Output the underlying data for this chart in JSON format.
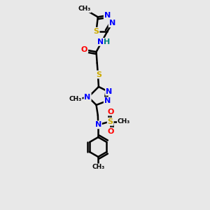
{
  "background_color": "#e8e8e8",
  "atom_colors": {
    "C": "#000000",
    "N": "#0000ff",
    "O": "#ff0000",
    "S": "#ccaa00",
    "H": "#008080"
  },
  "bond_color": "#000000",
  "bond_width": 1.8,
  "figsize": [
    3.0,
    3.0
  ],
  "dpi": 100,
  "xlim": [
    0,
    10
  ],
  "ylim": [
    0,
    13
  ]
}
